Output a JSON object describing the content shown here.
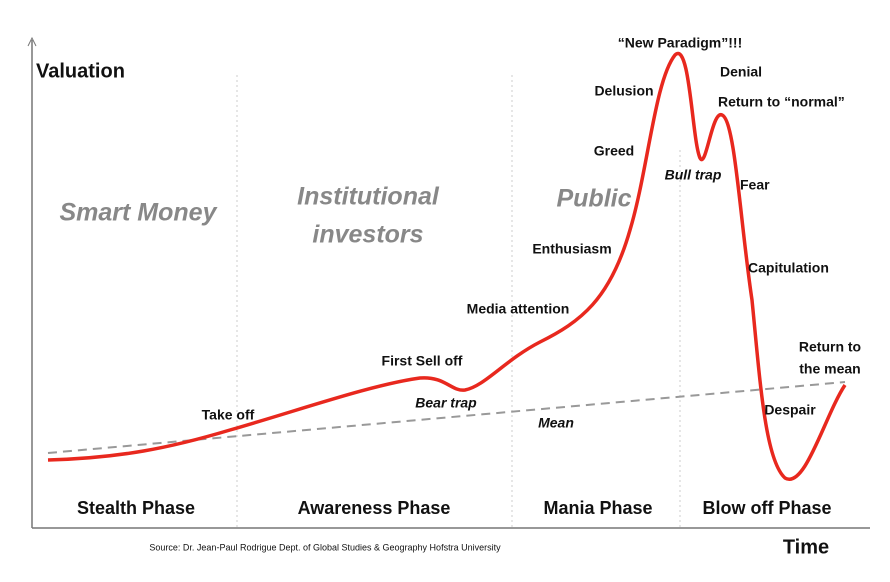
{
  "axes": {
    "y_label": "Valuation",
    "x_label": "Time"
  },
  "groups": [
    "Smart Money",
    "Institutional",
    "investors",
    "Public"
  ],
  "phases": [
    "Stealth Phase",
    "Awareness Phase",
    "Mania Phase",
    "Blow off Phase"
  ],
  "annotations": [
    "“New Paradigm”!!!",
    "Denial",
    "Delusion",
    "Return to “normal”",
    "Greed",
    "Bull trap",
    "Fear",
    "Enthusiasm",
    "Capitulation",
    "Media attention",
    "Return to",
    "the mean",
    "First Sell off",
    "Bear trap",
    "Take off",
    "Despair",
    "Mean"
  ],
  "source": "Source: Dr. Jean-Paul Rodrigue Dept. of Global Studies & Geography Hofstra University"
}
